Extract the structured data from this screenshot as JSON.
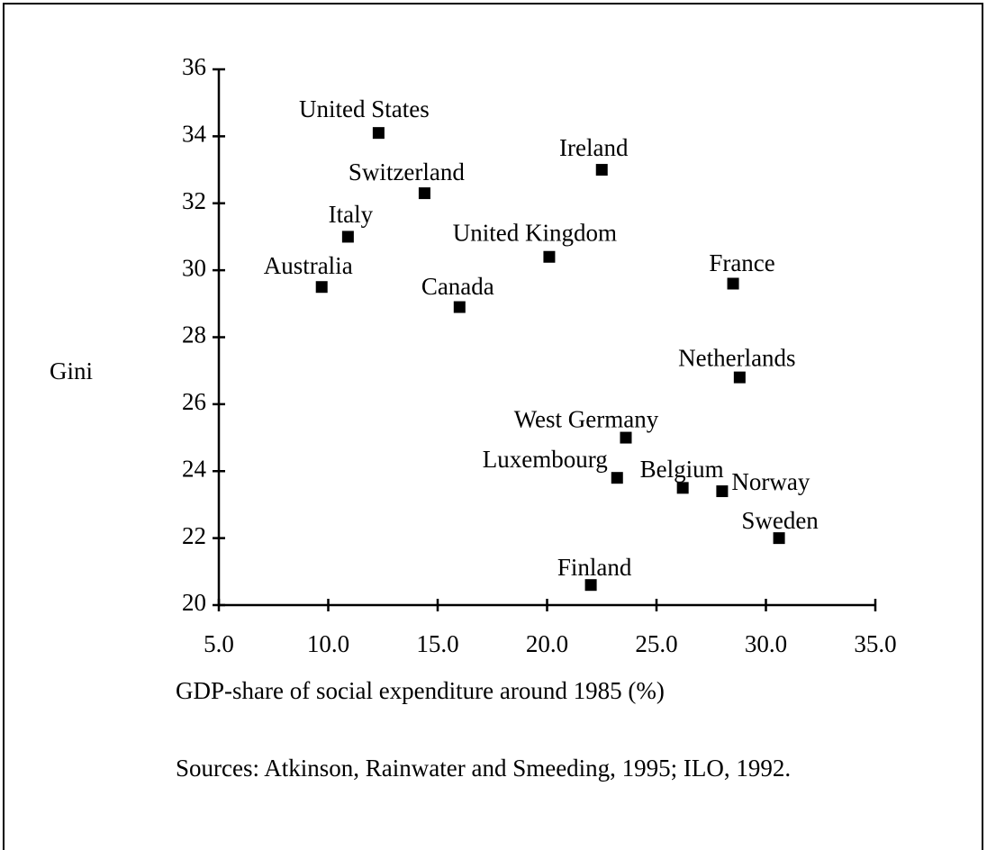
{
  "chart_data": {
    "type": "scatter",
    "y_label": "Gini",
    "x_label": "GDP-share of social expenditure around 1985 (%)",
    "source": "Sources: Atkinson, Rainwater and Smeeding, 1995; ILO, 1992.",
    "color": "#000000",
    "point_labels": [
      "United States",
      "Switzerland",
      "Ireland",
      "Italy",
      "United Kingdom",
      "Australia",
      "France",
      "Canada",
      "Netherlands",
      "West Germany",
      "Luxembourg",
      "Belgium",
      "Norway",
      "Sweden",
      "Finland"
    ],
    "x": [
      12.3,
      14.4,
      22.5,
      10.9,
      20.1,
      9.7,
      28.5,
      16.0,
      28.8,
      23.6,
      23.2,
      26.2,
      28.0,
      30.6,
      22.0
    ],
    "values": [
      34.1,
      32.3,
      33.0,
      31.0,
      30.4,
      29.5,
      29.6,
      28.9,
      26.8,
      25.0,
      23.8,
      23.5,
      23.4,
      22.0,
      20.6
    ],
    "xlim": [
      5,
      35
    ],
    "xticks": [
      {
        "value": 5,
        "label": "5.0"
      },
      {
        "value": 10,
        "label": "10.0"
      },
      {
        "value": 15,
        "label": "15.0"
      },
      {
        "value": 20,
        "label": "20.0"
      },
      {
        "value": 25,
        "label": "25.0"
      },
      {
        "value": 30,
        "label": "30.0"
      },
      {
        "value": 35,
        "label": "35.0"
      }
    ],
    "ylim": [
      20,
      36
    ],
    "yticks": [
      20,
      22,
      24,
      26,
      28,
      30,
      32,
      34,
      36
    ],
    "grid": false
  }
}
